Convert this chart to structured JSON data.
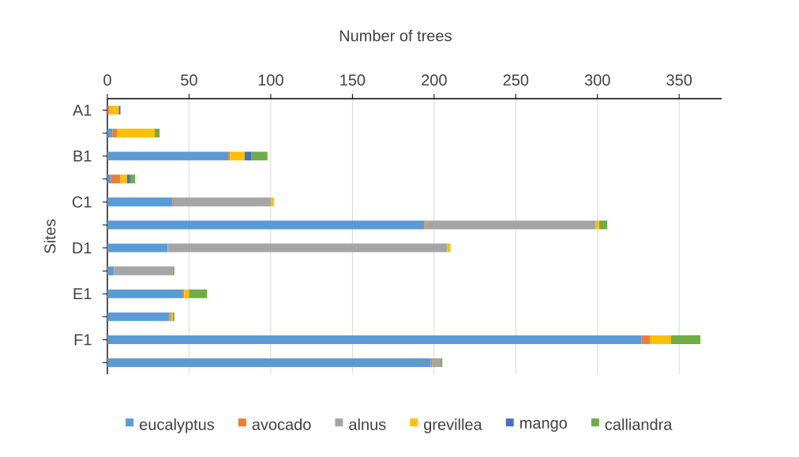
{
  "chart_data": {
    "type": "bar",
    "orientation": "horizontal",
    "stacked": true,
    "xlabel": "Number of trees",
    "ylabel": "Sites",
    "categories": [
      "A1",
      null,
      "B1",
      null,
      "C1",
      null,
      "D1",
      null,
      "E1",
      null,
      "F1",
      null
    ],
    "series": [
      {
        "name": "eucalyptus",
        "color": "#5b9bd5",
        "values": [
          0,
          3,
          74,
          2,
          40,
          194,
          37,
          4,
          46,
          38,
          327,
          198
        ]
      },
      {
        "name": "avocado",
        "color": "#ed7d31",
        "values": [
          1,
          3,
          1,
          6,
          1,
          1,
          0,
          0,
          1,
          1,
          5,
          1
        ]
      },
      {
        "name": "alnus",
        "color": "#a5a5a5",
        "values": [
          0,
          0,
          0,
          0,
          59,
          104,
          171,
          36,
          0,
          0,
          0,
          5
        ]
      },
      {
        "name": "grevillea",
        "color": "#ffc000",
        "values": [
          6,
          23,
          9,
          4,
          2,
          2,
          2,
          0,
          3,
          1,
          13,
          0
        ]
      },
      {
        "name": "mango",
        "color": "#4472c4",
        "values": [
          1,
          0,
          4,
          2,
          0,
          0,
          0,
          0,
          0,
          0,
          0,
          0
        ]
      },
      {
        "name": "calliandra",
        "color": "#70ad47",
        "values": [
          0,
          3,
          10,
          3,
          0,
          5,
          0,
          1,
          11,
          1,
          18,
          1
        ]
      }
    ],
    "xlim": [
      0,
      376
    ],
    "xticks": [
      0,
      50,
      100,
      150,
      200,
      250,
      300,
      350
    ],
    "grid": "x",
    "legend": "bottom"
  }
}
